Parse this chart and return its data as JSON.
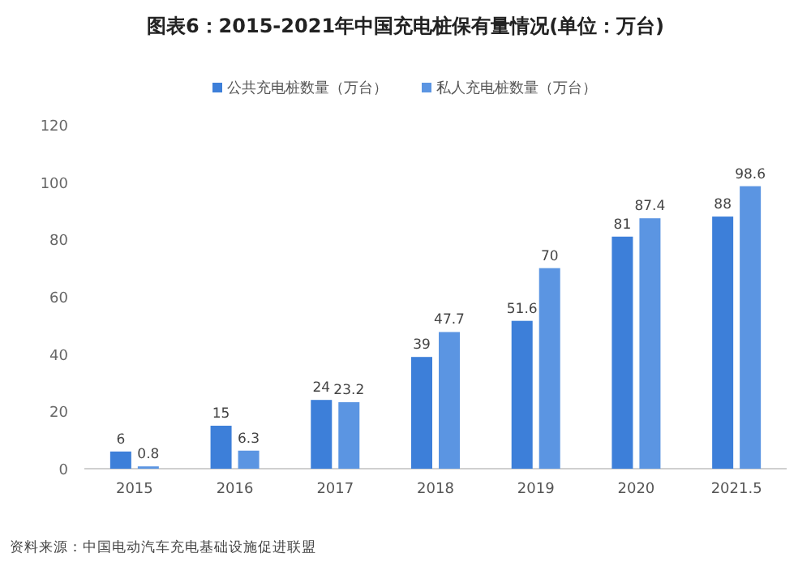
{
  "chart_data": {
    "type": "bar",
    "title": "图表6：2015-2021年中国充电桩保有量情况(单位：万台)",
    "categories": [
      "2015",
      "2016",
      "2017",
      "2018",
      "2019",
      "2020",
      "2021.5"
    ],
    "series": [
      {
        "name": "公共充电桩数量（万台）",
        "color": "#3d7fd9",
        "values": [
          6,
          15,
          24,
          39,
          51.6,
          81,
          88
        ]
      },
      {
        "name": "私人充电桩数量（万台）",
        "color": "#5b95e2",
        "values": [
          0.8,
          6.3,
          23.2,
          47.7,
          70,
          87.4,
          98.6
        ]
      }
    ],
    "ylim": [
      0,
      120
    ],
    "yticks": [
      0,
      20,
      40,
      60,
      80,
      100,
      120
    ],
    "data_labels": true,
    "legend": "top",
    "grid": false,
    "annotations": [
      "资料来源：中国电动汽车充电基础设施促进联盟"
    ]
  }
}
